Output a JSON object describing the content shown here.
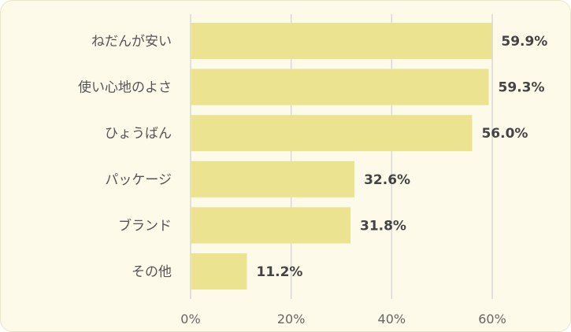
{
  "chart_data": {
    "type": "bar",
    "orientation": "horizontal",
    "categories": [
      "ねだんが安い",
      "使い心地のよさ",
      "ひょうばん",
      "パッケージ",
      "ブランド",
      "その他"
    ],
    "values": [
      59.9,
      59.3,
      56.0,
      32.6,
      31.8,
      11.2
    ],
    "value_labels": [
      "59.9%",
      "59.3%",
      "56.0%",
      "32.6%",
      "31.8%",
      "11.2%"
    ],
    "x_ticks": [
      0,
      20,
      40,
      60
    ],
    "x_tick_labels": [
      "0%",
      "20%",
      "40%",
      "60%"
    ],
    "xlim": [
      0,
      60
    ],
    "grid": true,
    "colors": {
      "bar": "#ebe390",
      "background": "#fdfaea",
      "grid": "#d8d8d8"
    }
  }
}
